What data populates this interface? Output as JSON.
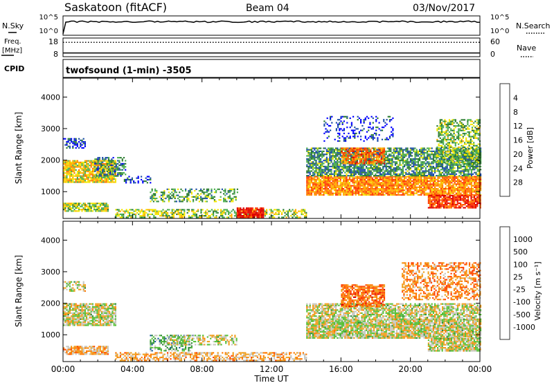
{
  "header": {
    "left": "Saskatoon (fitACF)",
    "center": "Beam 04",
    "right": "03/Nov/2017"
  },
  "scan_info": "twofsound (1-min) -3505",
  "side_labels": {
    "nsky": "N.Sky",
    "nsearch": "N.Search",
    "freq": "Freq.",
    "freq_unit": "[MHz]",
    "nave": "Nave",
    "cpid": "CPID"
  },
  "colors": {
    "power": [
      "#0000ff",
      "#1e4fa8",
      "#2e7d32",
      "#4caf50",
      "#f2e600",
      "#ffb000",
      "#ff7800",
      "#ff3a00",
      "#e00000"
    ],
    "velocity": [
      "#1a3cc0",
      "#2060a0",
      "#2e8b3a",
      "#58c038",
      "#c8c8c0",
      "#f0a020",
      "#ff7a00",
      "#ff4400",
      "#e00000"
    ]
  },
  "chart_data": [
    {
      "type": "line",
      "name": "noise-panel",
      "left_axis": {
        "ticks": [
          "10^5",
          "10^0"
        ]
      },
      "right_axis": {
        "ticks": [
          "10^5",
          "10^0"
        ]
      },
      "series": [
        {
          "name": "N.Sky",
          "style": "solid",
          "level": 0.7
        },
        {
          "name": "N.Search",
          "style": "dotted",
          "level": 0.7
        }
      ]
    },
    {
      "type": "line",
      "name": "frequency-panel",
      "left_axis": {
        "ticks": [
          "18",
          "8"
        ],
        "range": [
          8,
          18
        ]
      },
      "right_axis": {
        "ticks": [
          "60",
          "0"
        ],
        "range": [
          0,
          60
        ]
      },
      "series": [
        {
          "name": "Freq.",
          "style": "solid",
          "value": 10
        },
        {
          "name": "Nave",
          "style": "dotted",
          "value": 46
        }
      ]
    },
    {
      "type": "heatmap",
      "name": "power-panel",
      "xlabel": "",
      "ylabel": "Slant Range [km]",
      "xlim": [
        0,
        24
      ],
      "ylim": [
        150,
        4600
      ],
      "yticks": [
        "1000",
        "2000",
        "3000",
        "4000"
      ],
      "colorbar": {
        "label": "Power [dB]",
        "ticks": [
          "4",
          "8",
          "12",
          "16",
          "20",
          "24",
          "28"
        ]
      },
      "regions": [
        {
          "t": [
            0.0,
            3.0
          ],
          "r": [
            1300,
            2000
          ],
          "v": 0.55,
          "density": 0.85
        },
        {
          "t": [
            0.0,
            1.3
          ],
          "r": [
            2400,
            2700
          ],
          "v": 0.15,
          "density": 0.6
        },
        {
          "t": [
            0.0,
            2.6
          ],
          "r": [
            400,
            650
          ],
          "v": 0.45,
          "density": 0.8
        },
        {
          "t": [
            1.8,
            3.6
          ],
          "r": [
            1500,
            2100
          ],
          "v": 0.25,
          "density": 0.5
        },
        {
          "t": [
            3.5,
            5.0
          ],
          "r": [
            1300,
            1500
          ],
          "v": 0.12,
          "density": 0.4
        },
        {
          "t": [
            5.0,
            10.0
          ],
          "r": [
            700,
            1100
          ],
          "v": 0.35,
          "density": 0.45
        },
        {
          "t": [
            3.0,
            14.0
          ],
          "r": [
            180,
            450
          ],
          "v": 0.45,
          "density": 0.55
        },
        {
          "t": [
            10.0,
            11.5
          ],
          "r": [
            200,
            500
          ],
          "v": 0.95,
          "density": 0.9
        },
        {
          "t": [
            14.0,
            24.0
          ],
          "r": [
            900,
            1500
          ],
          "v": 0.7,
          "density": 0.9
        },
        {
          "t": [
            14.0,
            24.0
          ],
          "r": [
            1500,
            2400
          ],
          "v": 0.3,
          "density": 0.75
        },
        {
          "t": [
            16.0,
            18.5
          ],
          "r": [
            1900,
            2400
          ],
          "v": 0.75,
          "density": 0.7
        },
        {
          "t": [
            21.0,
            24.0
          ],
          "r": [
            500,
            900
          ],
          "v": 0.85,
          "density": 0.85
        },
        {
          "t": [
            21.5,
            24.0
          ],
          "r": [
            1900,
            3300
          ],
          "v": 0.4,
          "density": 0.55
        },
        {
          "t": [
            15.0,
            19.0
          ],
          "r": [
            2600,
            3400
          ],
          "v": 0.1,
          "density": 0.25
        }
      ]
    },
    {
      "type": "heatmap",
      "name": "velocity-panel",
      "xlabel": "Time UT",
      "ylabel": "Slant Range [km]",
      "xlim": [
        0,
        24
      ],
      "ylim": [
        150,
        4600
      ],
      "xticks": [
        "00:00",
        "04:00",
        "08:00",
        "12:00",
        "16:00",
        "20:00",
        "00:00"
      ],
      "yticks": [
        "1000",
        "2000",
        "3000",
        "4000"
      ],
      "colorbar": {
        "label": "Velocity [m s⁻¹]",
        "ticks": [
          "1000",
          "500",
          "100",
          "25",
          "-25",
          "-100",
          "-500",
          "-1000"
        ]
      },
      "regions": [
        {
          "t": [
            0.0,
            3.0
          ],
          "r": [
            1300,
            2000
          ],
          "v": 0.5,
          "density": 0.85
        },
        {
          "t": [
            0.0,
            1.3
          ],
          "r": [
            2400,
            2700
          ],
          "v": 0.5,
          "density": 0.6
        },
        {
          "t": [
            0.0,
            2.6
          ],
          "r": [
            400,
            650
          ],
          "v": 0.62,
          "density": 0.8
        },
        {
          "t": [
            5.0,
            7.5
          ],
          "r": [
            500,
            1000
          ],
          "v": 0.35,
          "density": 0.5
        },
        {
          "t": [
            6.0,
            10.0
          ],
          "r": [
            700,
            1000
          ],
          "v": 0.5,
          "density": 0.5
        },
        {
          "t": [
            3.0,
            14.0
          ],
          "r": [
            180,
            450
          ],
          "v": 0.62,
          "density": 0.55
        },
        {
          "t": [
            14.0,
            24.0
          ],
          "r": [
            900,
            1500
          ],
          "v": 0.5,
          "density": 0.9
        },
        {
          "t": [
            14.0,
            24.0
          ],
          "r": [
            1500,
            2000
          ],
          "v": 0.5,
          "density": 0.75
        },
        {
          "t": [
            16.0,
            18.5
          ],
          "r": [
            1900,
            2600
          ],
          "v": 0.75,
          "density": 0.75
        },
        {
          "t": [
            19.5,
            24.0
          ],
          "r": [
            2100,
            3300
          ],
          "v": 0.7,
          "density": 0.5
        },
        {
          "t": [
            21.0,
            24.0
          ],
          "r": [
            500,
            900
          ],
          "v": 0.5,
          "density": 0.85
        }
      ]
    }
  ]
}
